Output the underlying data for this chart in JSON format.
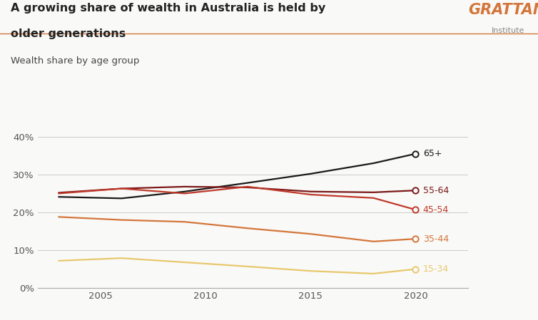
{
  "title_line1": "A growing share of wealth in Australia is held by",
  "title_line2": "older generations",
  "subtitle": "Wealth share by age group",
  "grattan_text": "GRATTAN",
  "institute_text": "Institute",
  "years": [
    2003,
    2006,
    2009,
    2012,
    2015,
    2018,
    2020
  ],
  "series": {
    "65+": {
      "values": [
        0.241,
        0.237,
        0.255,
        0.278,
        0.302,
        0.33,
        0.355
      ],
      "color": "#1a1a1a"
    },
    "55-64": {
      "values": [
        0.252,
        0.263,
        0.268,
        0.266,
        0.255,
        0.253,
        0.258
      ],
      "color": "#7b1a1a"
    },
    "45-54": {
      "values": [
        0.25,
        0.263,
        0.25,
        0.268,
        0.247,
        0.238,
        0.207
      ],
      "color": "#c0392b"
    },
    "35-44": {
      "values": [
        0.188,
        0.18,
        0.175,
        0.158,
        0.143,
        0.123,
        0.13
      ],
      "color": "#d4763b"
    },
    "15-34": {
      "values": [
        0.072,
        0.079,
        0.068,
        0.057,
        0.045,
        0.038,
        0.05
      ],
      "color": "#e8c86e"
    }
  },
  "xlim": [
    2002.0,
    2022.5
  ],
  "ylim": [
    0.0,
    0.44
  ],
  "yticks": [
    0.0,
    0.1,
    0.2,
    0.3,
    0.4
  ],
  "ytick_labels": [
    "0%",
    "10%",
    "20%",
    "30%",
    "40%"
  ],
  "xticks": [
    2005,
    2010,
    2015,
    2020
  ],
  "background_color": "#f9f9f7",
  "grattan_color": "#d4763b",
  "title_fontsize": 11.5,
  "subtitle_fontsize": 9.5,
  "tick_fontsize": 9.5
}
